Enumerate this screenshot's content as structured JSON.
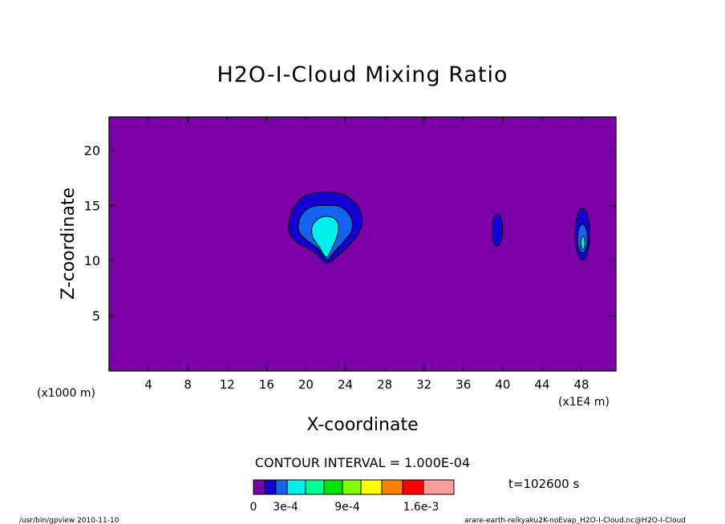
{
  "chart_data": {
    "type": "contour",
    "title": "H2O-I-Cloud Mixing Ratio",
    "xlabel": "X-coordinate",
    "ylabel": "Z-coordinate",
    "x_unit_left": "(x1000 m)",
    "x_unit_right": "(x1E4 m)",
    "xlim": [
      0,
      51.5
    ],
    "ylim": [
      0,
      23
    ],
    "xticks": [
      4,
      8,
      12,
      16,
      20,
      24,
      28,
      32,
      36,
      40,
      44,
      48
    ],
    "yticks": [
      5,
      10,
      15,
      20
    ],
    "contour_interval_text": "CONTOUR INTERVAL = 1.000E-04",
    "time_text": "t=102600 s",
    "colorbar": {
      "colors": [
        "#7b00a8",
        "#1400d2",
        "#1464f0",
        "#00f0f0",
        "#00ff96",
        "#00e600",
        "#80ff00",
        "#ffff00",
        "#ff8000",
        "#ff0000",
        "#ff9b9b"
      ],
      "labels": [
        "0",
        "3e-4",
        "9e-4",
        "1.6e-3"
      ]
    },
    "background_color": "#7b00a8",
    "features": [
      {
        "name": "main-cloud",
        "levels": [
          {
            "color": "#1400d2",
            "points": [
              [
                22.1,
                9.8
              ],
              [
                20.8,
                10.8
              ],
              [
                19.0,
                11.7
              ],
              [
                18.3,
                12.5
              ],
              [
                18.3,
                13.5
              ],
              [
                18.7,
                14.7
              ],
              [
                19.5,
                15.6
              ],
              [
                20.7,
                16.1
              ],
              [
                22.1,
                16.2
              ],
              [
                23.7,
                16.0
              ],
              [
                24.9,
                15.3
              ],
              [
                25.6,
                14.3
              ],
              [
                25.7,
                13.3
              ],
              [
                25.3,
                12.4
              ],
              [
                24.4,
                11.4
              ],
              [
                23.2,
                10.4
              ]
            ]
          },
          {
            "color": "#1464f0",
            "points": [
              [
                22.1,
                10.1
              ],
              [
                21.2,
                11.1
              ],
              [
                20.0,
                11.9
              ],
              [
                19.3,
                12.6
              ],
              [
                19.3,
                13.6
              ],
              [
                19.8,
                14.4
              ],
              [
                20.7,
                14.9
              ],
              [
                22.1,
                15.0
              ],
              [
                23.4,
                14.9
              ],
              [
                24.3,
                14.3
              ],
              [
                24.7,
                13.5
              ],
              [
                24.6,
                12.6
              ],
              [
                23.9,
                11.8
              ],
              [
                22.9,
                10.8
              ]
            ]
          },
          {
            "color": "#00f0f0",
            "points": [
              [
                22.1,
                10.3
              ],
              [
                21.3,
                11.3
              ],
              [
                20.7,
                12.1
              ],
              [
                20.6,
                12.9
              ],
              [
                20.9,
                13.5
              ],
              [
                21.5,
                13.9
              ],
              [
                22.2,
                14.0
              ],
              [
                22.9,
                13.8
              ],
              [
                23.3,
                13.2
              ],
              [
                23.2,
                12.3
              ],
              [
                22.8,
                11.4
              ]
            ]
          }
        ]
      },
      {
        "name": "small-cloud-x39",
        "levels": [
          {
            "color": "#1400d2",
            "ellipse": [
              39.45,
              12.8,
              0.55,
              1.45
            ]
          }
        ]
      },
      {
        "name": "small-cloud-x48",
        "levels": [
          {
            "color": "#1400d2",
            "ellipse": [
              48.1,
              12.4,
              0.75,
              2.35
            ]
          },
          {
            "color": "#1464f0",
            "ellipse": [
              48.1,
              12.0,
              0.5,
              1.3
            ]
          },
          {
            "color": "#00f0f0",
            "ellipse": [
              48.15,
              11.6,
              0.2,
              0.6
            ]
          }
        ]
      }
    ]
  },
  "footer": {
    "left_text": "/usr/bin/gpview  2010-11-10",
    "right_text": "arare-earth-reikyaku2K-noEvap_H2O-I-Cloud.nc@H2O-I-Cloud"
  }
}
